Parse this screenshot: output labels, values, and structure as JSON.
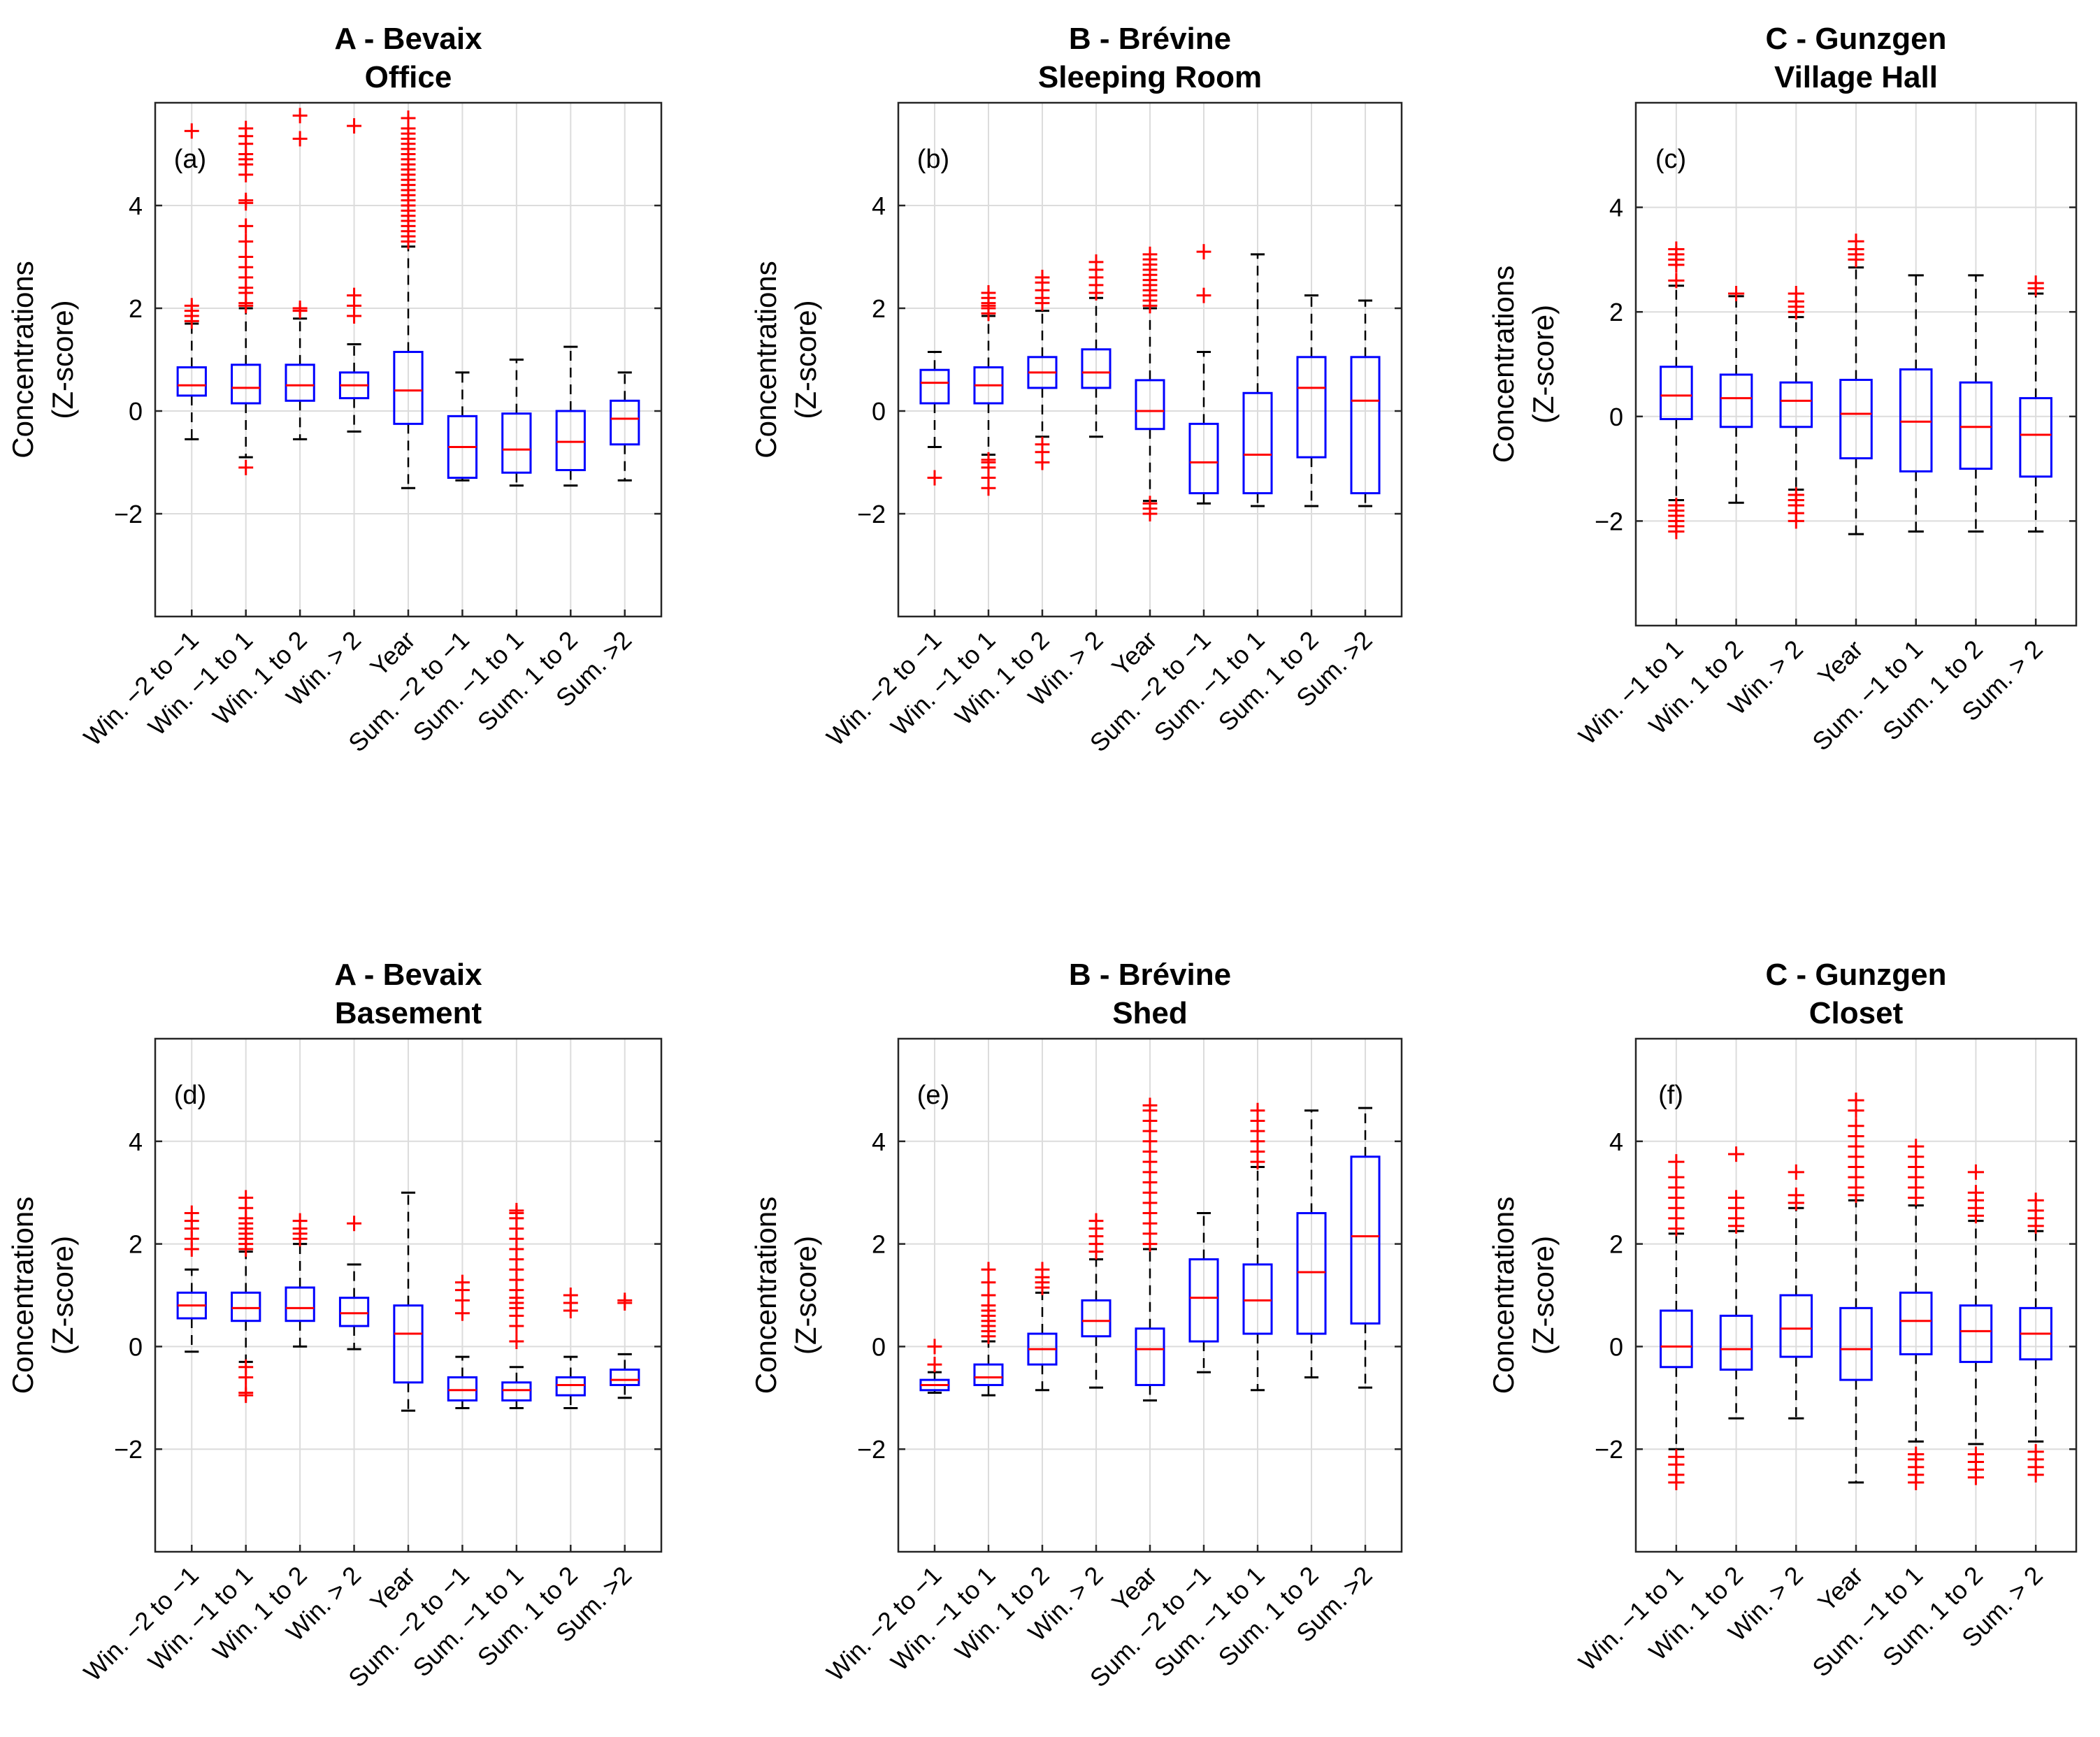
{
  "figure": {
    "y_axis_label_line1": "Concentrations",
    "y_axis_label_line2": "(Z-score)",
    "y_ticks": [
      "−2",
      "0",
      "2",
      "4"
    ]
  },
  "colors": {
    "box": "#0000ff",
    "median": "#ff0000",
    "outlier": "#ff0000",
    "whisker": "#000000",
    "grid": "#dcdcdc"
  },
  "chart_data": [
    {
      "type": "box",
      "panel": "(a)",
      "title_line1": "A - Bevaix",
      "title_line2": "Office",
      "ylim": [
        -4,
        6
      ],
      "yticks": [
        -2,
        0,
        2,
        4
      ],
      "categories": [
        "Win. −2 to −1",
        "Win. −1 to 1",
        "Win. 1 to 2",
        "Win. > 2",
        "Year",
        "Sum. −2 to −1",
        "Sum. −1 to 1",
        "Sum. 1 to 2",
        "Sum. >2"
      ],
      "boxes": [
        {
          "q1": 0.3,
          "median": 0.5,
          "q3": 0.85,
          "wlo": -0.55,
          "whi": 1.7,
          "outliers": [
            1.75,
            1.85,
            1.95,
            2.05,
            5.45
          ]
        },
        {
          "q1": 0.15,
          "median": 0.45,
          "q3": 0.9,
          "wlo": -0.9,
          "whi": 2.0,
          "outliers": [
            -1.1,
            2.05,
            2.1,
            2.3,
            2.4,
            2.6,
            2.8,
            3.0,
            3.3,
            3.6,
            4.05,
            4.1,
            4.6,
            4.8,
            4.9,
            5.0,
            5.2,
            5.35,
            5.5
          ]
        },
        {
          "q1": 0.2,
          "median": 0.5,
          "q3": 0.9,
          "wlo": -0.55,
          "whi": 1.8,
          "outliers": [
            1.95,
            2.0,
            5.3,
            5.75
          ]
        },
        {
          "q1": 0.25,
          "median": 0.5,
          "q3": 0.75,
          "wlo": -0.4,
          "whi": 1.3,
          "outliers": [
            1.85,
            2.05,
            2.25,
            5.55
          ]
        },
        {
          "q1": -0.25,
          "median": 0.4,
          "q3": 1.15,
          "wlo": -1.5,
          "whi": 3.2,
          "outliers": [
            3.3,
            3.4,
            3.5,
            3.6,
            3.7,
            3.8,
            3.9,
            4.0,
            4.1,
            4.2,
            4.3,
            4.4,
            4.5,
            4.6,
            4.7,
            4.8,
            4.9,
            5.0,
            5.1,
            5.2,
            5.3,
            5.4,
            5.5,
            5.7
          ]
        },
        {
          "q1": -1.3,
          "median": -0.7,
          "q3": -0.1,
          "wlo": -1.35,
          "whi": 0.75,
          "outliers": []
        },
        {
          "q1": -1.2,
          "median": -0.75,
          "q3": -0.05,
          "wlo": -1.45,
          "whi": 1.0,
          "outliers": []
        },
        {
          "q1": -1.15,
          "median": -0.6,
          "q3": 0.0,
          "wlo": -1.45,
          "whi": 1.25,
          "outliers": []
        },
        {
          "q1": -0.65,
          "median": -0.15,
          "q3": 0.2,
          "wlo": -1.35,
          "whi": 0.75,
          "outliers": []
        }
      ]
    },
    {
      "type": "box",
      "panel": "(b)",
      "title_line1": "B - Brévine",
      "title_line2": "Sleeping Room",
      "ylim": [
        -4,
        6
      ],
      "yticks": [
        -2,
        0,
        2,
        4
      ],
      "categories": [
        "Win. −2 to −1",
        "Win. −1 to 1",
        "Win. 1 to 2",
        "Win. > 2",
        "Year",
        "Sum. −2 to −1",
        "Sum. −1 to 1",
        "Sum. 1 to 2",
        "Sum. >2"
      ],
      "boxes": [
        {
          "q1": 0.15,
          "median": 0.55,
          "q3": 0.8,
          "wlo": -0.7,
          "whi": 1.15,
          "outliers": [
            -1.3
          ]
        },
        {
          "q1": 0.15,
          "median": 0.5,
          "q3": 0.85,
          "wlo": -0.85,
          "whi": 1.85,
          "outliers": [
            -1.5,
            -1.3,
            -1.1,
            -1.0,
            -0.95,
            1.9,
            2.0,
            2.05,
            2.1,
            2.2,
            2.3
          ]
        },
        {
          "q1": 0.45,
          "median": 0.75,
          "q3": 1.05,
          "wlo": -0.5,
          "whi": 1.95,
          "outliers": [
            -1.0,
            -0.8,
            -0.65,
            2.1,
            2.2,
            2.35,
            2.5,
            2.6
          ]
        },
        {
          "q1": 0.45,
          "median": 0.75,
          "q3": 1.2,
          "wlo": -0.5,
          "whi": 2.2,
          "outliers": [
            2.3,
            2.45,
            2.6,
            2.75,
            2.9
          ]
        },
        {
          "q1": -0.35,
          "median": 0.0,
          "q3": 0.6,
          "wlo": -1.75,
          "whi": 2.0,
          "outliers": [
            -2.0,
            -1.9,
            -1.8,
            2.05,
            2.15,
            2.25,
            2.35,
            2.45,
            2.55,
            2.65,
            2.75,
            2.85,
            2.95,
            3.05
          ]
        },
        {
          "q1": -1.6,
          "median": -1.0,
          "q3": -0.25,
          "wlo": -1.8,
          "whi": 1.15,
          "outliers": [
            2.25,
            3.1
          ]
        },
        {
          "q1": -1.6,
          "median": -0.85,
          "q3": 0.35,
          "wlo": -1.85,
          "whi": 3.05,
          "outliers": []
        },
        {
          "q1": -0.9,
          "median": 0.45,
          "q3": 1.05,
          "wlo": -1.85,
          "whi": 2.25,
          "outliers": []
        },
        {
          "q1": -1.6,
          "median": 0.2,
          "q3": 1.05,
          "wlo": -1.85,
          "whi": 2.15,
          "outliers": []
        }
      ]
    },
    {
      "type": "box",
      "panel": "(c)",
      "title_line1": "C - Gunzgen",
      "title_line2": "Village Hall",
      "ylim": [
        -4,
        6
      ],
      "yticks": [
        -2,
        0,
        2,
        4
      ],
      "categories": [
        "Win. −1 to 1",
        "Win. 1 to 2",
        "Win. > 2",
        "Year",
        "Sum. −1 to 1",
        "Sum. 1 to 2",
        "Sum. > 2"
      ],
      "boxes": [
        {
          "q1": -0.05,
          "median": 0.4,
          "q3": 0.95,
          "wlo": -1.6,
          "whi": 2.5,
          "outliers": [
            -2.2,
            -2.1,
            -2.0,
            -1.9,
            -1.8,
            -1.7,
            2.6,
            2.9,
            3.0,
            3.1,
            3.2
          ]
        },
        {
          "q1": -0.2,
          "median": 0.35,
          "q3": 0.8,
          "wlo": -1.65,
          "whi": 2.3,
          "outliers": [
            2.35
          ]
        },
        {
          "q1": -0.2,
          "median": 0.3,
          "q3": 0.65,
          "wlo": -1.4,
          "whi": 1.9,
          "outliers": [
            -2.0,
            -1.85,
            -1.7,
            -1.6,
            -1.5,
            2.0,
            2.1,
            2.2,
            2.35
          ]
        },
        {
          "q1": -0.8,
          "median": 0.05,
          "q3": 0.7,
          "wlo": -2.25,
          "whi": 2.85,
          "outliers": [
            3.0,
            3.1,
            3.2,
            3.35
          ]
        },
        {
          "q1": -1.05,
          "median": -0.1,
          "q3": 0.9,
          "wlo": -2.2,
          "whi": 2.7,
          "outliers": []
        },
        {
          "q1": -1.0,
          "median": -0.2,
          "q3": 0.65,
          "wlo": -2.2,
          "whi": 2.7,
          "outliers": []
        },
        {
          "q1": -1.15,
          "median": -0.35,
          "q3": 0.35,
          "wlo": -2.2,
          "whi": 2.35,
          "outliers": [
            2.45,
            2.55
          ]
        }
      ]
    },
    {
      "type": "box",
      "panel": "(d)",
      "title_line1": "A - Bevaix",
      "title_line2": "Basement",
      "ylim": [
        -4,
        6
      ],
      "yticks": [
        -2,
        0,
        2,
        4
      ],
      "categories": [
        "Win. −2 to −1",
        "Win. −1 to 1",
        "Win. 1 to 2",
        "Win. > 2",
        "Year",
        "Sum. −2 to −1",
        "Sum. −1 to 1",
        "Sum. 1 to 2",
        "Sum. >2"
      ],
      "boxes": [
        {
          "q1": 0.55,
          "median": 0.8,
          "q3": 1.05,
          "wlo": -0.1,
          "whi": 1.5,
          "outliers": [
            1.9,
            2.1,
            2.3,
            2.45,
            2.6
          ]
        },
        {
          "q1": 0.5,
          "median": 0.75,
          "q3": 1.05,
          "wlo": -0.3,
          "whi": 1.85,
          "outliers": [
            -0.95,
            -0.9,
            -0.6,
            -0.4,
            1.9,
            2.0,
            2.1,
            2.2,
            2.3,
            2.4,
            2.5,
            2.7,
            2.9
          ]
        },
        {
          "q1": 0.5,
          "median": 0.75,
          "q3": 1.15,
          "wlo": 0.0,
          "whi": 2.0,
          "outliers": [
            2.1,
            2.2,
            2.3,
            2.45
          ]
        },
        {
          "q1": 0.4,
          "median": 0.65,
          "q3": 0.95,
          "wlo": -0.05,
          "whi": 1.6,
          "outliers": [
            2.4
          ]
        },
        {
          "q1": -0.7,
          "median": 0.25,
          "q3": 0.8,
          "wlo": -1.25,
          "whi": 3.0,
          "outliers": []
        },
        {
          "q1": -1.05,
          "median": -0.85,
          "q3": -0.6,
          "wlo": -1.2,
          "whi": -0.2,
          "outliers": [
            0.65,
            0.9,
            1.1,
            1.25
          ]
        },
        {
          "q1": -1.05,
          "median": -0.85,
          "q3": -0.7,
          "wlo": -1.2,
          "whi": -0.4,
          "outliers": [
            0.1,
            0.4,
            0.6,
            0.75,
            0.85,
            0.95,
            1.1,
            1.3,
            1.5,
            1.7,
            1.9,
            2.1,
            2.3,
            2.5,
            2.6,
            2.65
          ]
        },
        {
          "q1": -0.95,
          "median": -0.75,
          "q3": -0.6,
          "wlo": -1.2,
          "whi": -0.2,
          "outliers": [
            0.7,
            0.85,
            1.0
          ]
        },
        {
          "q1": -0.75,
          "median": -0.65,
          "q3": -0.45,
          "wlo": -1.0,
          "whi": -0.15,
          "outliers": [
            0.85,
            0.9
          ]
        }
      ]
    },
    {
      "type": "box",
      "panel": "(e)",
      "title_line1": "B - Brévine",
      "title_line2": "Shed",
      "ylim": [
        -4,
        6
      ],
      "yticks": [
        -2,
        0,
        2,
        4
      ],
      "categories": [
        "Win. −2 to −1",
        "Win. −1 to 1",
        "Win. 1 to 2",
        "Win. > 2",
        "Year",
        "Sum. −2 to −1",
        "Sum. −1 to 1",
        "Sum. 1 to 2",
        "Sum. >2"
      ],
      "boxes": [
        {
          "q1": -0.85,
          "median": -0.75,
          "q3": -0.65,
          "wlo": -0.9,
          "whi": -0.5,
          "outliers": [
            -0.35,
            0.0
          ]
        },
        {
          "q1": -0.75,
          "median": -0.6,
          "q3": -0.35,
          "wlo": -0.95,
          "whi": 0.1,
          "outliers": [
            0.2,
            0.3,
            0.4,
            0.5,
            0.6,
            0.7,
            0.8,
            1.0,
            1.25,
            1.5
          ]
        },
        {
          "q1": -0.35,
          "median": -0.05,
          "q3": 0.25,
          "wlo": -0.85,
          "whi": 1.05,
          "outliers": [
            1.15,
            1.25,
            1.35,
            1.5
          ]
        },
        {
          "q1": 0.2,
          "median": 0.5,
          "q3": 0.9,
          "wlo": -0.8,
          "whi": 1.7,
          "outliers": [
            1.85,
            2.0,
            2.15,
            2.3,
            2.45
          ]
        },
        {
          "q1": -0.75,
          "median": -0.05,
          "q3": 0.35,
          "wlo": -1.05,
          "whi": 1.9,
          "outliers": [
            2.0,
            2.2,
            2.4,
            2.6,
            2.8,
            3.0,
            3.2,
            3.4,
            3.6,
            3.8,
            4.0,
            4.2,
            4.4,
            4.6,
            4.7
          ]
        },
        {
          "q1": 0.1,
          "median": 0.95,
          "q3": 1.7,
          "wlo": -0.5,
          "whi": 2.6,
          "outliers": []
        },
        {
          "q1": 0.25,
          "median": 0.9,
          "q3": 1.6,
          "wlo": -0.85,
          "whi": 3.5,
          "outliers": [
            3.6,
            3.8,
            4.0,
            4.2,
            4.4,
            4.6
          ]
        },
        {
          "q1": 0.25,
          "median": 1.45,
          "q3": 2.6,
          "wlo": -0.6,
          "whi": 4.6,
          "outliers": []
        },
        {
          "q1": 0.45,
          "median": 2.15,
          "q3": 3.7,
          "wlo": -0.8,
          "whi": 4.65,
          "outliers": []
        }
      ]
    },
    {
      "type": "box",
      "panel": "(f)",
      "title_line1": "C - Gunzgen",
      "title_line2": "Closet",
      "ylim": [
        -4,
        6
      ],
      "yticks": [
        -2,
        0,
        2,
        4
      ],
      "categories": [
        "Win. −1 to 1",
        "Win. 1 to 2",
        "Win. > 2",
        "Year",
        "Sum. −1 to 1",
        "Sum. 1 to 2",
        "Sum. > 2"
      ],
      "boxes": [
        {
          "q1": -0.4,
          "median": 0.0,
          "q3": 0.7,
          "wlo": -2.0,
          "whi": 2.2,
          "outliers": [
            -2.65,
            -2.5,
            -2.3,
            -2.15,
            2.3,
            2.5,
            2.7,
            2.9,
            3.1,
            3.3,
            3.6
          ]
        },
        {
          "q1": -0.45,
          "median": -0.05,
          "q3": 0.6,
          "wlo": -1.4,
          "whi": 2.25,
          "outliers": [
            2.35,
            2.5,
            2.7,
            2.9,
            3.75
          ]
        },
        {
          "q1": -0.2,
          "median": 0.35,
          "q3": 1.0,
          "wlo": -1.4,
          "whi": 2.7,
          "outliers": [
            2.8,
            2.95,
            3.4
          ]
        },
        {
          "q1": -0.65,
          "median": -0.05,
          "q3": 0.75,
          "wlo": -2.65,
          "whi": 2.85,
          "outliers": [
            2.95,
            3.1,
            3.3,
            3.5,
            3.7,
            3.9,
            4.1,
            4.3,
            4.6,
            4.8
          ]
        },
        {
          "q1": -0.15,
          "median": 0.5,
          "q3": 1.05,
          "wlo": -1.85,
          "whi": 2.75,
          "outliers": [
            -2.65,
            -2.5,
            -2.35,
            -2.2,
            -2.1,
            2.9,
            3.1,
            3.3,
            3.5,
            3.7,
            3.9
          ]
        },
        {
          "q1": -0.3,
          "median": 0.3,
          "q3": 0.8,
          "wlo": -1.9,
          "whi": 2.45,
          "outliers": [
            -2.55,
            -2.4,
            -2.25,
            -2.1,
            2.55,
            2.7,
            2.85,
            3.0,
            3.4
          ]
        },
        {
          "q1": -0.25,
          "median": 0.25,
          "q3": 0.75,
          "wlo": -1.85,
          "whi": 2.25,
          "outliers": [
            -2.5,
            -2.35,
            -2.2,
            -2.05,
            2.35,
            2.5,
            2.65,
            2.85
          ]
        }
      ]
    }
  ]
}
